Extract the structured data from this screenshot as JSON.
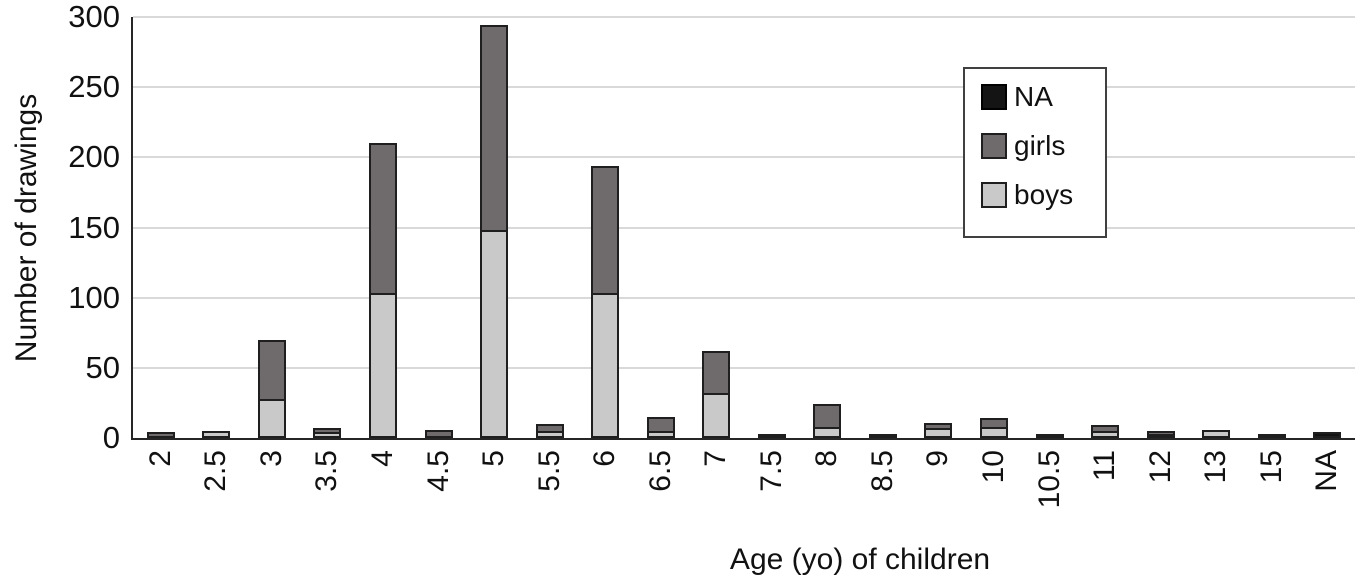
{
  "chart_data": {
    "type": "bar",
    "stacked": true,
    "title": "",
    "xlabel": "Age (yo) of children",
    "ylabel": "Number of drawings",
    "categories": [
      "2",
      "2.5",
      "3",
      "3.5",
      "4",
      "4.5",
      "5",
      "5.5",
      "6",
      "6.5",
      "7",
      "7.5",
      "8",
      "8.5",
      "9",
      "10",
      "10.5",
      "11",
      "12",
      "13",
      "15",
      "NA"
    ],
    "series": [
      {
        "name": "boys",
        "color": "#c9c9c9",
        "values": [
          0,
          5,
          28,
          4,
          103,
          0,
          148,
          5,
          103,
          5,
          32,
          0,
          8,
          0,
          7,
          8,
          0,
          5,
          3,
          6,
          0,
          0
        ]
      },
      {
        "name": "girls",
        "color": "#6f6a6c",
        "values": [
          4,
          0,
          42,
          3,
          107,
          6,
          146,
          5,
          91,
          10,
          30,
          2,
          16,
          2,
          4,
          6,
          1,
          4,
          1,
          0,
          1,
          0
        ]
      },
      {
        "name": "NA",
        "color": "#141414",
        "values": [
          0,
          0,
          0,
          0,
          0,
          0,
          0,
          0,
          0,
          0,
          0,
          0,
          0,
          0,
          0,
          0,
          0,
          0,
          0,
          0,
          0,
          4
        ]
      }
    ],
    "totals": [
      4,
      5,
      70,
      7,
      210,
      6,
      294,
      10,
      194,
      15,
      62,
      2,
      24,
      2,
      11,
      14,
      1,
      9,
      4,
      6,
      1,
      4
    ],
    "ylim": [
      0,
      300
    ],
    "yticks": [
      0,
      50,
      100,
      150,
      200,
      250,
      300
    ],
    "grid": true,
    "legend": {
      "position": "top-right",
      "entries": [
        "NA",
        "girls",
        "boys"
      ]
    }
  },
  "colors": {
    "boys": "#c9c9c9",
    "girls": "#6f6a6c",
    "na": "#141414",
    "bar_border": "#1f1f1f",
    "gridline": "#d9d9d9",
    "axis_line": "#262626",
    "legend_border": "#404040",
    "background": "#ffffff"
  }
}
